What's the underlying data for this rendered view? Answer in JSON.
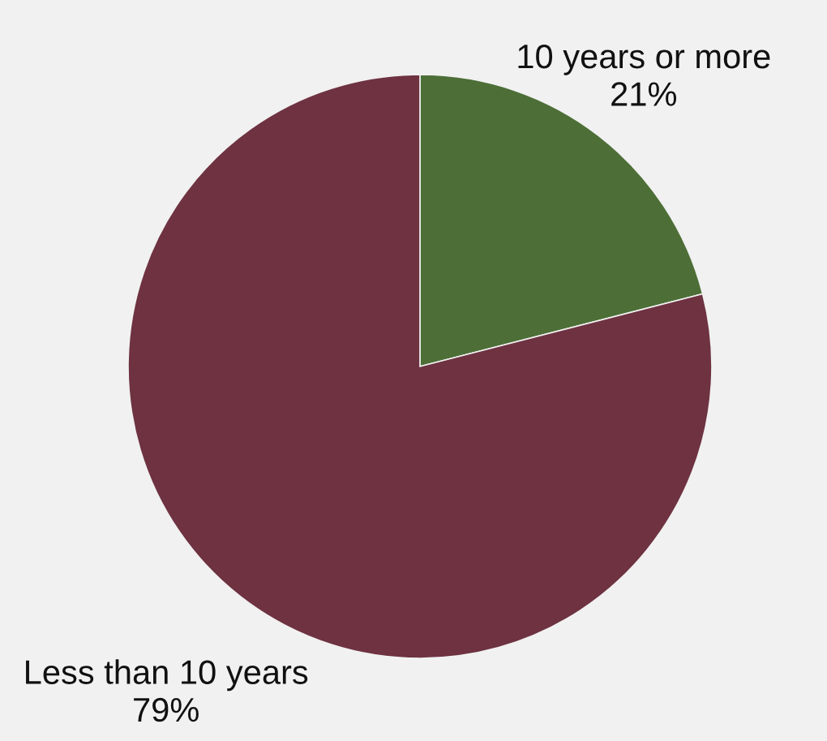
{
  "chart_data": {
    "type": "pie",
    "categories": [
      "10 years or more",
      "Less than 10 years"
    ],
    "values": [
      21,
      79
    ],
    "colors": [
      "#4d6f37",
      "#6e3241"
    ],
    "value_labels": [
      "21%",
      "79%"
    ]
  }
}
